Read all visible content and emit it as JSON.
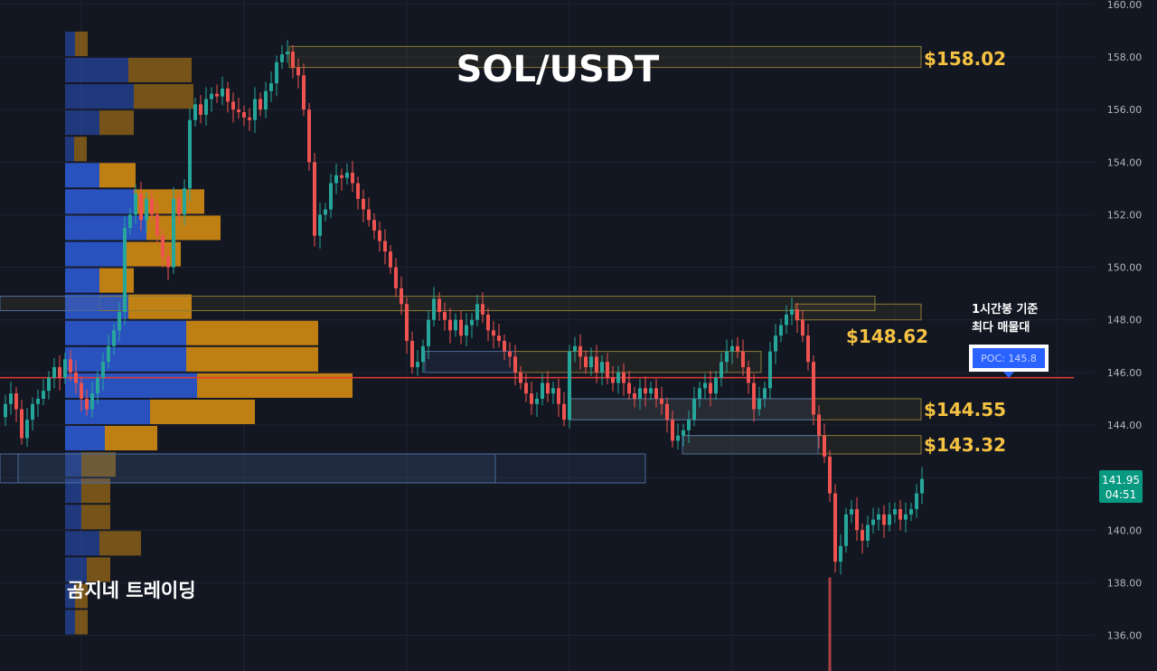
{
  "title": "SOL/USDT",
  "watermark": "곰지네 트레이딩",
  "annotation": {
    "line1": "1시간봉 기준",
    "line2": "최다 매물대"
  },
  "poc": {
    "label": "POC: 145.8",
    "value": 145.8
  },
  "price_tag": {
    "price": "141.95",
    "countdown": "04:51",
    "value": 141.95
  },
  "levels": [
    {
      "label": "$158.02",
      "value": 158.02
    },
    {
      "label": "$148.62",
      "value": 148.62
    },
    {
      "label": "$144.55",
      "value": 144.55
    },
    {
      "label": "$143.32",
      "value": 143.32
    }
  ],
  "colors": {
    "background": "#131722",
    "grid": "#1f2330",
    "up": "#26a69a",
    "down": "#ef5350",
    "level_text": "#f5c242",
    "poc_line": "#e53935",
    "poc_box": "#2962ff",
    "vp_blue": "#2b55c7",
    "vp_orange": "#c98512",
    "price_tag": "#089981"
  },
  "chart_data": {
    "type": "candlestick",
    "title": "SOL/USDT",
    "ylim": [
      135,
      160
    ],
    "y_ticks": [
      "160.00",
      "158.00",
      "156.00",
      "154.00",
      "152.00",
      "150.00",
      "148.00",
      "146.00",
      "144.00",
      "142.00",
      "140.00",
      "138.00",
      "136.00"
    ],
    "grid": true,
    "price_scale": "right",
    "poc": 145.8,
    "last_price": 141.95,
    "resistance_levels": [
      158.02,
      148.62,
      144.55,
      143.32
    ],
    "series": [
      {
        "name": "price path (approx close)",
        "points": [
          [
            0,
            144.3
          ],
          [
            6,
            144.8
          ],
          [
            12,
            145.2
          ],
          [
            18,
            144.6
          ],
          [
            24,
            143.5
          ],
          [
            30,
            144.2
          ],
          [
            36,
            144.8
          ],
          [
            42,
            145.0
          ],
          [
            48,
            145.3
          ],
          [
            54,
            145.8
          ],
          [
            60,
            146.2
          ],
          [
            66,
            145.8
          ],
          [
            72,
            146.5
          ],
          [
            78,
            146.0
          ],
          [
            84,
            145.6
          ],
          [
            90,
            145.0
          ],
          [
            96,
            144.6
          ],
          [
            102,
            145.2
          ],
          [
            108,
            145.8
          ],
          [
            114,
            146.4
          ],
          [
            120,
            147.0
          ],
          [
            126,
            147.6
          ],
          [
            132,
            148.3
          ],
          [
            138,
            151.5
          ],
          [
            144,
            152.0
          ],
          [
            150,
            152.8
          ],
          [
            156,
            151.8
          ],
          [
            162,
            152.6
          ],
          [
            168,
            152.0
          ],
          [
            174,
            151.2
          ],
          [
            180,
            150.4
          ],
          [
            186,
            150.0
          ],
          [
            192,
            152.6
          ],
          [
            198,
            152.0
          ],
          [
            204,
            153.0
          ],
          [
            210,
            155.6
          ],
          [
            216,
            156.2
          ],
          [
            222,
            155.8
          ],
          [
            228,
            156.4
          ],
          [
            234,
            156.6
          ],
          [
            240,
            156.5
          ],
          [
            246,
            156.8
          ],
          [
            252,
            156.3
          ],
          [
            258,
            156.0
          ],
          [
            264,
            155.9
          ],
          [
            270,
            155.7
          ],
          [
            276,
            155.6
          ],
          [
            282,
            156.4
          ],
          [
            288,
            156.0
          ],
          [
            294,
            156.7
          ],
          [
            300,
            157.0
          ],
          [
            306,
            157.8
          ],
          [
            312,
            158.1
          ],
          [
            318,
            158.2
          ],
          [
            324,
            157.6
          ],
          [
            330,
            157.3
          ],
          [
            336,
            156.0
          ],
          [
            342,
            154.0
          ],
          [
            348,
            151.2
          ],
          [
            354,
            152.0
          ],
          [
            360,
            152.2
          ],
          [
            366,
            153.2
          ],
          [
            372,
            153.5
          ],
          [
            378,
            153.4
          ],
          [
            384,
            153.6
          ],
          [
            390,
            153.2
          ],
          [
            396,
            152.6
          ],
          [
            402,
            152.2
          ],
          [
            408,
            151.8
          ],
          [
            414,
            151.4
          ],
          [
            420,
            151.0
          ],
          [
            426,
            150.6
          ],
          [
            432,
            150.0
          ],
          [
            438,
            149.2
          ],
          [
            444,
            148.6
          ],
          [
            450,
            147.2
          ],
          [
            456,
            146.2
          ],
          [
            462,
            146.4
          ],
          [
            468,
            147.0
          ],
          [
            474,
            148.0
          ],
          [
            480,
            148.8
          ],
          [
            486,
            148.3
          ],
          [
            492,
            148.0
          ],
          [
            498,
            147.6
          ],
          [
            504,
            148.0
          ],
          [
            510,
            147.4
          ],
          [
            516,
            147.8
          ],
          [
            522,
            148.0
          ],
          [
            528,
            148.6
          ],
          [
            534,
            148.2
          ],
          [
            540,
            147.6
          ],
          [
            546,
            147.4
          ],
          [
            552,
            147.2
          ],
          [
            558,
            146.8
          ],
          [
            564,
            146.6
          ],
          [
            570,
            146.0
          ],
          [
            576,
            145.6
          ],
          [
            582,
            145.2
          ],
          [
            588,
            144.8
          ],
          [
            594,
            145.0
          ],
          [
            600,
            145.6
          ],
          [
            606,
            145.2
          ],
          [
            612,
            145.4
          ],
          [
            618,
            144.8
          ],
          [
            624,
            144.2
          ],
          [
            630,
            146.8
          ],
          [
            636,
            147.0
          ],
          [
            642,
            146.6
          ],
          [
            648,
            146.2
          ],
          [
            654,
            146.6
          ],
          [
            660,
            146.0
          ],
          [
            666,
            146.4
          ],
          [
            672,
            145.8
          ],
          [
            678,
            145.6
          ],
          [
            684,
            146.0
          ],
          [
            690,
            145.6
          ],
          [
            696,
            145.2
          ],
          [
            702,
            145.0
          ],
          [
            708,
            145.4
          ],
          [
            714,
            145.2
          ],
          [
            720,
            145.4
          ],
          [
            726,
            145.0
          ],
          [
            732,
            144.8
          ],
          [
            738,
            144.2
          ],
          [
            744,
            143.4
          ],
          [
            750,
            143.6
          ],
          [
            756,
            143.8
          ],
          [
            762,
            144.2
          ],
          [
            768,
            145.0
          ],
          [
            774,
            145.4
          ],
          [
            780,
            145.6
          ],
          [
            786,
            145.2
          ],
          [
            792,
            145.8
          ],
          [
            798,
            146.4
          ],
          [
            804,
            146.8
          ],
          [
            810,
            147.0
          ],
          [
            816,
            146.8
          ],
          [
            822,
            146.2
          ],
          [
            828,
            145.6
          ],
          [
            834,
            144.6
          ],
          [
            840,
            145.0
          ],
          [
            846,
            145.4
          ],
          [
            852,
            146.8
          ],
          [
            858,
            147.4
          ],
          [
            864,
            147.8
          ],
          [
            870,
            148.2
          ],
          [
            876,
            148.4
          ],
          [
            882,
            148.0
          ],
          [
            888,
            147.4
          ],
          [
            894,
            146.4
          ],
          [
            900,
            144.4
          ],
          [
            906,
            143.6
          ],
          [
            912,
            142.8
          ],
          [
            918,
            141.4
          ],
          [
            924,
            138.8
          ],
          [
            930,
            139.4
          ],
          [
            936,
            140.6
          ],
          [
            942,
            140.8
          ],
          [
            948,
            140.0
          ],
          [
            954,
            139.6
          ],
          [
            960,
            140.2
          ],
          [
            966,
            140.4
          ],
          [
            972,
            140.6
          ],
          [
            978,
            140.2
          ],
          [
            984,
            140.6
          ],
          [
            990,
            140.8
          ],
          [
            996,
            140.4
          ],
          [
            1002,
            140.6
          ],
          [
            1008,
            140.8
          ],
          [
            1014,
            141.4
          ],
          [
            1020,
            141.95
          ]
        ]
      }
    ],
    "volume_profile": {
      "bins": [
        {
          "price": 158.5,
          "buy": 11,
          "sell": 14
        },
        {
          "price": 157.5,
          "buy": 70,
          "sell": 70
        },
        {
          "price": 156.5,
          "buy": 76,
          "sell": 66
        },
        {
          "price": 155.5,
          "buy": 38,
          "sell": 38
        },
        {
          "price": 154.5,
          "buy": 10,
          "sell": 14
        },
        {
          "price": 153.5,
          "buy": 38,
          "sell": 40
        },
        {
          "price": 152.5,
          "buy": 76,
          "sell": 78
        },
        {
          "price": 151.5,
          "buy": 90,
          "sell": 82
        },
        {
          "price": 150.5,
          "buy": 66,
          "sell": 62
        },
        {
          "price": 149.5,
          "buy": 38,
          "sell": 38
        },
        {
          "price": 148.5,
          "buy": 70,
          "sell": 70
        },
        {
          "price": 147.5,
          "buy": 134,
          "sell": 146
        },
        {
          "price": 146.5,
          "buy": 134,
          "sell": 146
        },
        {
          "price": 145.5,
          "buy": 146,
          "sell": 172
        },
        {
          "price": 144.5,
          "buy": 94,
          "sell": 116
        },
        {
          "price": 143.5,
          "buy": 44,
          "sell": 58
        },
        {
          "price": 142.5,
          "buy": 18,
          "sell": 38
        },
        {
          "price": 141.5,
          "buy": 18,
          "sell": 32
        },
        {
          "price": 140.5,
          "buy": 18,
          "sell": 32
        },
        {
          "price": 139.5,
          "buy": 38,
          "sell": 46
        },
        {
          "price": 138.5,
          "buy": 24,
          "sell": 26
        },
        {
          "price": 137.5,
          "buy": 11,
          "sell": 14
        },
        {
          "price": 136.5,
          "buy": 11,
          "sell": 14
        }
      ]
    }
  }
}
